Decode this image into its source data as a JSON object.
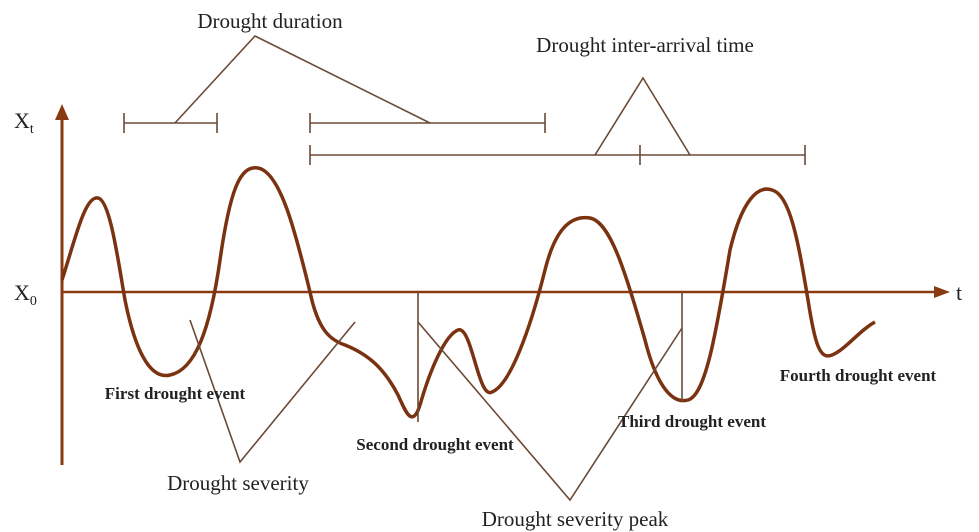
{
  "axes": {
    "y_label": "X",
    "y_label_sub": "t",
    "origin_label": "X",
    "origin_sub": "0",
    "x_label": "t"
  },
  "annotations": {
    "drought_duration": "Drought duration",
    "inter_arrival": "Drought inter-arrival time",
    "severity": "Drought severity",
    "severity_peak": "Drought severity peak"
  },
  "events": [
    "First drought event",
    "Second drought event",
    "Third drought event",
    "Fourth drought event"
  ]
}
